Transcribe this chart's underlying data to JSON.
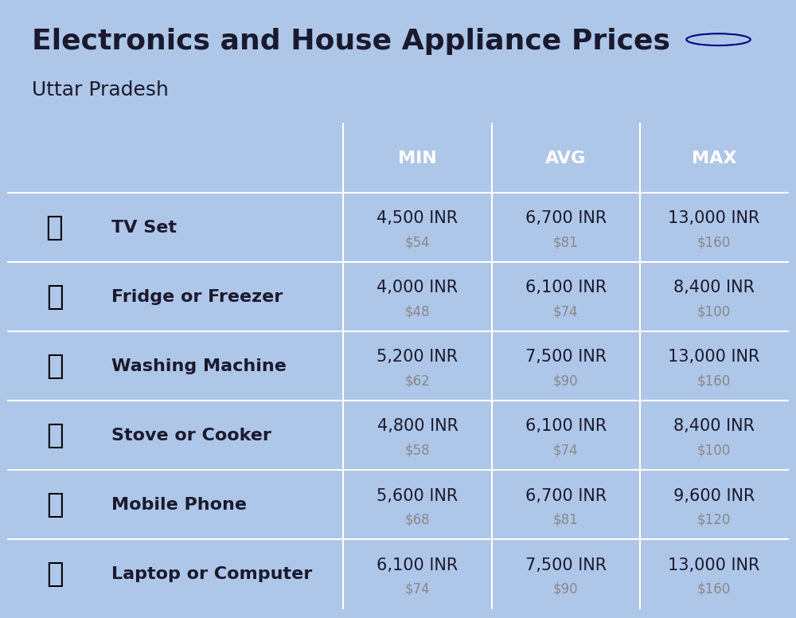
{
  "title": "Electronics and House Appliance Prices",
  "subtitle": "Uttar Pradesh",
  "background_color": "#aec6e8",
  "header_color": "#5b9bd5",
  "header_text_color": "#ffffff",
  "row_colors": [
    "#c5d8ee",
    "#b8cfe8"
  ],
  "separator_color": "#ffffff",
  "columns": [
    "MIN",
    "AVG",
    "MAX"
  ],
  "items": [
    {
      "name": "TV Set",
      "min_inr": "4,500 INR",
      "min_usd": "$54",
      "avg_inr": "6,700 INR",
      "avg_usd": "$81",
      "max_inr": "13,000 INR",
      "max_usd": "$160"
    },
    {
      "name": "Fridge or Freezer",
      "min_inr": "4,000 INR",
      "min_usd": "$48",
      "avg_inr": "6,100 INR",
      "avg_usd": "$74",
      "max_inr": "8,400 INR",
      "max_usd": "$100"
    },
    {
      "name": "Washing Machine",
      "min_inr": "5,200 INR",
      "min_usd": "$62",
      "avg_inr": "7,500 INR",
      "avg_usd": "$90",
      "max_inr": "13,000 INR",
      "max_usd": "$160"
    },
    {
      "name": "Stove or Cooker",
      "min_inr": "4,800 INR",
      "min_usd": "$58",
      "avg_inr": "6,100 INR",
      "avg_usd": "$74",
      "max_inr": "8,400 INR",
      "max_usd": "$100"
    },
    {
      "name": "Mobile Phone",
      "min_inr": "5,600 INR",
      "min_usd": "$68",
      "avg_inr": "6,700 INR",
      "avg_usd": "$81",
      "max_inr": "9,600 INR",
      "max_usd": "$120"
    },
    {
      "name": "Laptop or Computer",
      "min_inr": "6,100 INR",
      "min_usd": "$74",
      "avg_inr": "7,500 INR",
      "avg_usd": "$90",
      "max_inr": "13,000 INR",
      "max_usd": "$160"
    }
  ],
  "title_fontsize": 26,
  "subtitle_fontsize": 18,
  "header_fontsize": 16,
  "item_name_fontsize": 16,
  "value_fontsize": 15,
  "usd_fontsize": 12,
  "flag_orange": "#FF9933",
  "flag_white": "#FFFFFF",
  "flag_green": "#138808",
  "flag_chakra": "#000080",
  "text_dark": "#1a1a2e",
  "text_gray": "#888888"
}
